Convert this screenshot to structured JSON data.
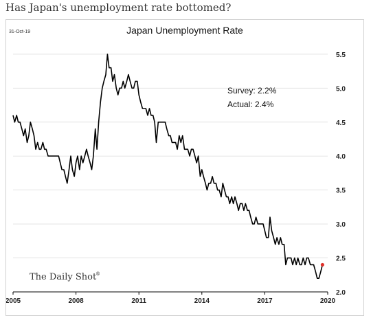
{
  "page": {
    "headline": "Has Japan's unemployment rate bottomed?"
  },
  "chart_data": {
    "type": "line",
    "title": "Japan Unemployment Rate",
    "date_stamp": "31-Oct-19",
    "xlabel": "",
    "ylabel": "",
    "xlim": [
      2005.0,
      2020.0
    ],
    "ylim": [
      2.0,
      5.6
    ],
    "x_ticks": [
      2005,
      2008,
      2011,
      2014,
      2017,
      2020
    ],
    "y_ticks": [
      2.0,
      2.5,
      3.0,
      3.5,
      4.0,
      4.5,
      5.0,
      5.5
    ],
    "y_tick_labels": [
      "2.0",
      "2.5",
      "3.0",
      "3.5",
      "4.0",
      "4.5",
      "5.0",
      "5.5"
    ],
    "y_axis_side": "right",
    "grid": "horizontal",
    "line_color": "#000000",
    "annotation": {
      "survey": "Survey: 2.2%",
      "actual": "Actual:  2.4%"
    },
    "source_brand": "The Daily Shot",
    "brand_mark": "®",
    "highlight_point": {
      "x": 2019.75,
      "y": 2.4,
      "color": "#e0302a"
    },
    "series": [
      {
        "name": "",
        "points": [
          [
            2005.0,
            4.6
          ],
          [
            2005.08,
            4.5
          ],
          [
            2005.17,
            4.6
          ],
          [
            2005.25,
            4.5
          ],
          [
            2005.33,
            4.5
          ],
          [
            2005.42,
            4.4
          ],
          [
            2005.5,
            4.3
          ],
          [
            2005.58,
            4.4
          ],
          [
            2005.67,
            4.2
          ],
          [
            2005.75,
            4.3
          ],
          [
            2005.83,
            4.5
          ],
          [
            2005.92,
            4.4
          ],
          [
            2006.0,
            4.3
          ],
          [
            2006.08,
            4.1
          ],
          [
            2006.17,
            4.2
          ],
          [
            2006.25,
            4.1
          ],
          [
            2006.33,
            4.1
          ],
          [
            2006.42,
            4.2
          ],
          [
            2006.5,
            4.1
          ],
          [
            2006.58,
            4.1
          ],
          [
            2006.67,
            4.0
          ],
          [
            2006.75,
            4.0
          ],
          [
            2006.83,
            4.0
          ],
          [
            2006.92,
            4.0
          ],
          [
            2007.0,
            4.0
          ],
          [
            2007.08,
            4.0
          ],
          [
            2007.17,
            4.0
          ],
          [
            2007.25,
            3.9
          ],
          [
            2007.33,
            3.8
          ],
          [
            2007.42,
            3.8
          ],
          [
            2007.5,
            3.7
          ],
          [
            2007.58,
            3.6
          ],
          [
            2007.67,
            3.8
          ],
          [
            2007.75,
            4.0
          ],
          [
            2007.83,
            3.8
          ],
          [
            2007.92,
            3.7
          ],
          [
            2008.0,
            3.9
          ],
          [
            2008.08,
            4.0
          ],
          [
            2008.17,
            3.8
          ],
          [
            2008.25,
            4.0
          ],
          [
            2008.33,
            3.9
          ],
          [
            2008.42,
            4.0
          ],
          [
            2008.5,
            4.1
          ],
          [
            2008.58,
            4.0
          ],
          [
            2008.67,
            3.9
          ],
          [
            2008.75,
            3.8
          ],
          [
            2008.83,
            4.0
          ],
          [
            2008.92,
            4.4
          ],
          [
            2009.0,
            4.1
          ],
          [
            2009.08,
            4.5
          ],
          [
            2009.17,
            4.8
          ],
          [
            2009.25,
            5.0
          ],
          [
            2009.33,
            5.1
          ],
          [
            2009.42,
            5.2
          ],
          [
            2009.5,
            5.5
          ],
          [
            2009.58,
            5.3
          ],
          [
            2009.67,
            5.3
          ],
          [
            2009.75,
            5.1
          ],
          [
            2009.83,
            5.2
          ],
          [
            2009.92,
            5.0
          ],
          [
            2010.0,
            4.9
          ],
          [
            2010.08,
            5.0
          ],
          [
            2010.17,
            5.0
          ],
          [
            2010.25,
            5.1
          ],
          [
            2010.33,
            5.0
          ],
          [
            2010.42,
            5.1
          ],
          [
            2010.5,
            5.2
          ],
          [
            2010.58,
            5.1
          ],
          [
            2010.67,
            5.0
          ],
          [
            2010.75,
            5.0
          ],
          [
            2010.83,
            5.1
          ],
          [
            2010.92,
            5.1
          ],
          [
            2011.0,
            4.9
          ],
          [
            2011.08,
            4.8
          ],
          [
            2011.17,
            4.7
          ],
          [
            2011.25,
            4.7
          ],
          [
            2011.33,
            4.7
          ],
          [
            2011.42,
            4.6
          ],
          [
            2011.5,
            4.7
          ],
          [
            2011.58,
            4.6
          ],
          [
            2011.67,
            4.6
          ],
          [
            2011.75,
            4.5
          ],
          [
            2011.83,
            4.2
          ],
          [
            2011.92,
            4.5
          ],
          [
            2012.0,
            4.5
          ],
          [
            2012.08,
            4.5
          ],
          [
            2012.17,
            4.5
          ],
          [
            2012.25,
            4.5
          ],
          [
            2012.33,
            4.4
          ],
          [
            2012.42,
            4.3
          ],
          [
            2012.5,
            4.3
          ],
          [
            2012.58,
            4.2
          ],
          [
            2012.67,
            4.2
          ],
          [
            2012.75,
            4.2
          ],
          [
            2012.83,
            4.1
          ],
          [
            2012.92,
            4.3
          ],
          [
            2013.0,
            4.2
          ],
          [
            2013.08,
            4.3
          ],
          [
            2013.17,
            4.1
          ],
          [
            2013.25,
            4.1
          ],
          [
            2013.33,
            4.1
          ],
          [
            2013.42,
            4.0
          ],
          [
            2013.5,
            4.1
          ],
          [
            2013.58,
            4.1
          ],
          [
            2013.67,
            4.0
          ],
          [
            2013.75,
            3.9
          ],
          [
            2013.83,
            4.0
          ],
          [
            2013.92,
            3.7
          ],
          [
            2014.0,
            3.8
          ],
          [
            2014.08,
            3.7
          ],
          [
            2014.17,
            3.6
          ],
          [
            2014.25,
            3.5
          ],
          [
            2014.33,
            3.6
          ],
          [
            2014.42,
            3.6
          ],
          [
            2014.5,
            3.7
          ],
          [
            2014.58,
            3.6
          ],
          [
            2014.67,
            3.6
          ],
          [
            2014.75,
            3.5
          ],
          [
            2014.83,
            3.5
          ],
          [
            2014.92,
            3.4
          ],
          [
            2015.0,
            3.6
          ],
          [
            2015.08,
            3.5
          ],
          [
            2015.17,
            3.4
          ],
          [
            2015.25,
            3.4
          ],
          [
            2015.33,
            3.3
          ],
          [
            2015.42,
            3.4
          ],
          [
            2015.5,
            3.3
          ],
          [
            2015.58,
            3.4
          ],
          [
            2015.67,
            3.3
          ],
          [
            2015.75,
            3.2
          ],
          [
            2015.83,
            3.3
          ],
          [
            2015.92,
            3.3
          ],
          [
            2016.0,
            3.2
          ],
          [
            2016.08,
            3.3
          ],
          [
            2016.17,
            3.2
          ],
          [
            2016.25,
            3.2
          ],
          [
            2016.33,
            3.1
          ],
          [
            2016.42,
            3.0
          ],
          [
            2016.5,
            3.0
          ],
          [
            2016.58,
            3.1
          ],
          [
            2016.67,
            3.0
          ],
          [
            2016.75,
            3.0
          ],
          [
            2016.83,
            3.0
          ],
          [
            2016.92,
            3.0
          ],
          [
            2017.0,
            2.9
          ],
          [
            2017.08,
            2.8
          ],
          [
            2017.17,
            2.8
          ],
          [
            2017.25,
            3.1
          ],
          [
            2017.33,
            2.9
          ],
          [
            2017.42,
            2.8
          ],
          [
            2017.5,
            2.7
          ],
          [
            2017.58,
            2.8
          ],
          [
            2017.67,
            2.7
          ],
          [
            2017.75,
            2.8
          ],
          [
            2017.83,
            2.7
          ],
          [
            2017.92,
            2.7
          ],
          [
            2018.0,
            2.4
          ],
          [
            2018.08,
            2.5
          ],
          [
            2018.17,
            2.5
          ],
          [
            2018.25,
            2.5
          ],
          [
            2018.33,
            2.4
          ],
          [
            2018.42,
            2.5
          ],
          [
            2018.5,
            2.4
          ],
          [
            2018.58,
            2.5
          ],
          [
            2018.67,
            2.4
          ],
          [
            2018.75,
            2.4
          ],
          [
            2018.83,
            2.5
          ],
          [
            2018.92,
            2.4
          ],
          [
            2019.0,
            2.5
          ],
          [
            2019.08,
            2.5
          ],
          [
            2019.17,
            2.4
          ],
          [
            2019.25,
            2.4
          ],
          [
            2019.33,
            2.4
          ],
          [
            2019.42,
            2.3
          ],
          [
            2019.5,
            2.2
          ],
          [
            2019.58,
            2.2
          ],
          [
            2019.67,
            2.3
          ],
          [
            2019.75,
            2.4
          ]
        ]
      }
    ]
  }
}
